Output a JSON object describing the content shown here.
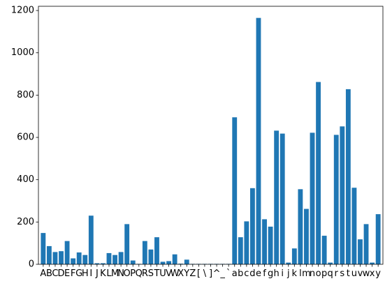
{
  "chart_data": {
    "type": "bar",
    "title": "",
    "xlabel": "",
    "ylabel": "",
    "ylim": [
      0,
      1220
    ],
    "yticks": [
      0,
      200,
      400,
      600,
      800,
      1000,
      1200
    ],
    "grid": false,
    "legend": "none",
    "bar_color": "#1f77b4",
    "categories": [
      "A",
      "B",
      "C",
      "D",
      "E",
      "F",
      "G",
      "H",
      "I",
      "J",
      "K",
      "L",
      "M",
      "N",
      "O",
      "P",
      "Q",
      "R",
      "S",
      "T",
      "U",
      "V",
      "W",
      "X",
      "Y",
      "Z",
      "[",
      "\\",
      "]",
      "^",
      "_",
      "`",
      "a",
      "b",
      "c",
      "d",
      "e",
      "f",
      "g",
      "h",
      "i",
      "j",
      "k",
      "l",
      "m",
      "n",
      "o",
      "p",
      "q",
      "r",
      "s",
      "t",
      "u",
      "v",
      "w",
      "x",
      "y"
    ],
    "values": [
      148,
      86,
      58,
      62,
      110,
      28,
      56,
      44,
      230,
      5,
      5,
      53,
      44,
      58,
      190,
      18,
      2,
      110,
      70,
      128,
      12,
      15,
      47,
      3,
      22,
      2,
      2,
      2,
      2,
      2,
      2,
      2,
      695,
      128,
      203,
      360,
      1165,
      213,
      178,
      632,
      618,
      8,
      75,
      355,
      262,
      622,
      862,
      135,
      8,
      612,
      652,
      828,
      362,
      118,
      190,
      8,
      237
    ]
  }
}
